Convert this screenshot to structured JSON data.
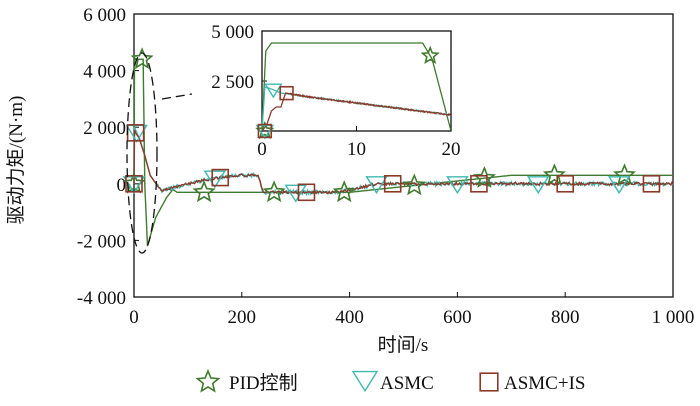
{
  "chart_data": {
    "type": "line",
    "xlabel": "时间/s",
    "ylabel": "驱动力矩/(N·m)",
    "xlim": [
      0,
      1000
    ],
    "ylim": [
      -4000,
      6000
    ],
    "xticks": [
      0,
      200,
      400,
      600,
      800,
      1000
    ],
    "xtick_labels": [
      "0",
      "200",
      "400",
      "600",
      "800",
      "1 000"
    ],
    "yticks": [
      -4000,
      -2000,
      0,
      2000,
      4000,
      6000
    ],
    "ytick_labels": [
      "-4 000",
      "-2 000",
      "0",
      "2 000",
      "4 000",
      "6 000"
    ],
    "grid": false,
    "legend_position": "bottom",
    "colors": {
      "PID": "#3f7a2e",
      "ASMC": "#3fb8b0",
      "ASMC+IS": "#8b3a2a"
    },
    "series": [
      {
        "name": "PID控制",
        "marker": "star",
        "x": [
          0,
          1,
          3,
          17,
          20,
          25,
          40,
          60,
          72,
          80,
          100,
          200,
          300,
          400,
          500,
          600,
          700,
          800,
          1000
        ],
        "y": [
          0,
          4400,
          4400,
          4400,
          0,
          -2200,
          -1200,
          -500,
          -200,
          -300,
          -300,
          -300,
          -300,
          -300,
          -100,
          100,
          300,
          300,
          300
        ],
        "marker_x": [
          0,
          15,
          130,
          260,
          390,
          520,
          650,
          780,
          910
        ]
      },
      {
        "name": "ASMC",
        "marker": "triangle-down",
        "x": [
          0,
          1,
          3,
          10,
          20,
          30,
          50,
          100,
          150,
          200,
          230,
          240,
          300,
          380,
          450,
          500,
          600,
          700,
          800,
          1000
        ],
        "y": [
          0,
          2000,
          1900,
          1600,
          1000,
          300,
          -250,
          0,
          200,
          300,
          300,
          -300,
          -300,
          -300,
          0,
          0,
          0,
          0,
          0,
          0
        ],
        "marker_x": [
          0,
          5,
          150,
          300,
          450,
          600,
          750,
          900
        ]
      },
      {
        "name": "ASMC+IS",
        "marker": "square",
        "x": [
          0,
          1,
          3,
          10,
          20,
          30,
          50,
          100,
          150,
          200,
          230,
          240,
          300,
          380,
          450,
          500,
          600,
          700,
          800,
          1000
        ],
        "y": [
          0,
          1900,
          1800,
          1600,
          1000,
          300,
          -250,
          0,
          200,
          300,
          300,
          -300,
          -300,
          -300,
          0,
          0,
          0,
          0,
          0,
          0
        ],
        "marker_x": [
          0,
          3,
          160,
          320,
          480,
          640,
          800,
          960
        ]
      }
    ],
    "inset": {
      "xlim": [
        0,
        20
      ],
      "ylim": [
        0,
        5000
      ],
      "xticks": [
        0,
        10,
        20
      ],
      "xtick_labels": [
        "0",
        "10",
        "20"
      ],
      "yticks": [
        2500,
        5000
      ],
      "ytick_labels": [
        "2 500",
        "5 000"
      ],
      "series": [
        {
          "name": "PID控制",
          "x": [
            0,
            0.4,
            1,
            17,
            18,
            20
          ],
          "y": [
            0,
            4000,
            4400,
            4400,
            3600,
            0
          ],
          "marker_x": [
            0.3,
            17.8
          ]
        },
        {
          "name": "ASMC",
          "x": [
            0,
            0.3,
            1,
            2,
            5,
            10,
            15,
            20
          ],
          "y": [
            0,
            2200,
            2100,
            1900,
            1700,
            1400,
            1100,
            800
          ],
          "marker_x": [
            0.3,
            1.2
          ]
        },
        {
          "name": "ASMC+IS",
          "x": [
            0,
            0.5,
            1,
            1.5,
            2,
            2.5,
            5,
            10,
            15,
            20
          ],
          "y": [
            0,
            300,
            1000,
            1200,
            1200,
            1900,
            1700,
            1400,
            1100,
            800
          ],
          "marker_x": [
            0.3,
            2.6
          ]
        }
      ]
    }
  }
}
